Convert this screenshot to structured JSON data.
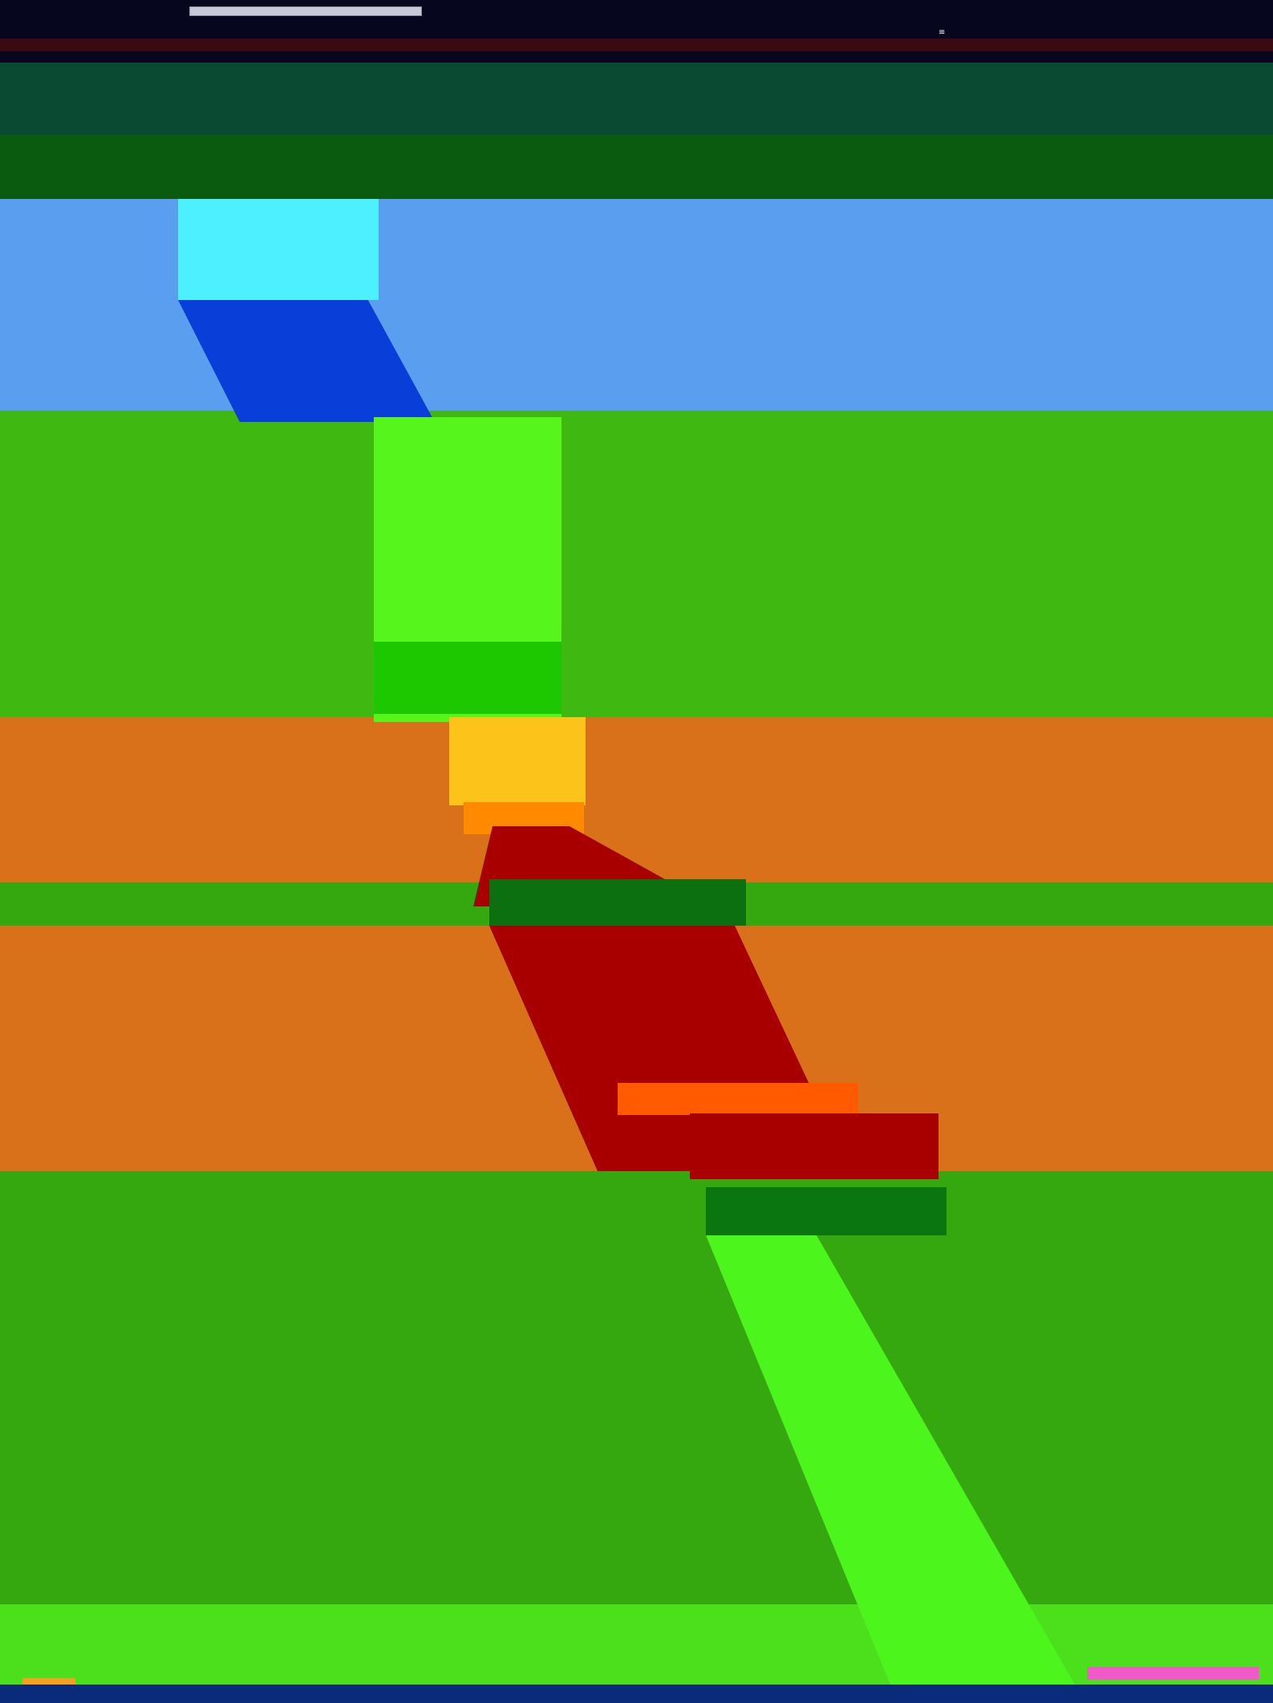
{
  "window": {
    "title": ""
  },
  "colors": {
    "sky": "#5a9ef0",
    "grass": "#3fb812",
    "earth": "#d9701a",
    "path_yellow": "#fcc41a",
    "path_red": "#a80000",
    "chrome_dark": "#06061e"
  },
  "icons": {
    "menu": "menu-icon"
  }
}
